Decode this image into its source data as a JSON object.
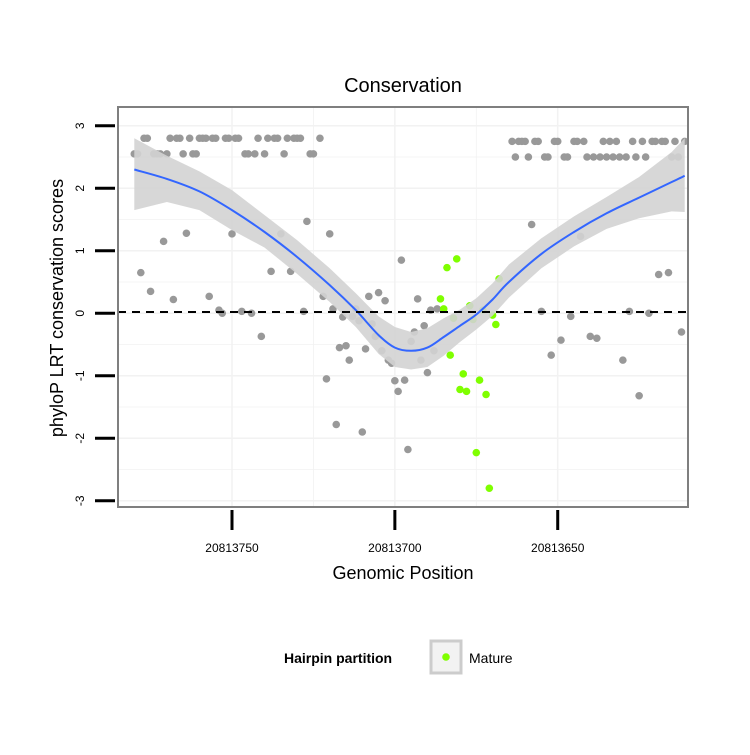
{
  "chart_data": {
    "type": "scatter",
    "title": "Conservation",
    "xlabel": "Genomic Position",
    "ylabel": "phyloP LRT conservation scores",
    "x_reversed": true,
    "xlim": [
      20813785,
      20813610
    ],
    "ylim": [
      -3.1,
      3.3
    ],
    "x_ticks": [
      20813750,
      20813700,
      20813650
    ],
    "y_ticks": [
      3,
      2,
      1,
      0,
      -1,
      -2,
      -3
    ],
    "grid": true,
    "reference_line": {
      "y": 0.02,
      "style": "dashed",
      "color": "#000000"
    },
    "colors": {
      "other": "#999999",
      "mature": "#7FFF00",
      "trend": "#3366FF",
      "confidence_band": "#D3D3D3",
      "panel_border": "#7F7F7F",
      "grid": "#F2F2F2"
    },
    "legend": {
      "title": "Hairpin partition",
      "position": "bottom",
      "entries": [
        {
          "label": "Mature",
          "color": "#7FFF00"
        }
      ]
    },
    "series": [
      {
        "name": "",
        "color": "#999999",
        "points": [
          [
            20813780,
            2.55
          ],
          [
            20813779,
            2.55
          ],
          [
            20813777,
            2.8
          ],
          [
            20813776,
            2.8
          ],
          [
            20813778,
            0.65
          ],
          [
            20813775,
            0.35
          ],
          [
            20813774,
            2.55
          ],
          [
            20813773,
            2.55
          ],
          [
            20813772,
            2.55
          ],
          [
            20813771,
            1.15
          ],
          [
            20813770,
            2.55
          ],
          [
            20813769,
            2.8
          ],
          [
            20813768,
            0.22
          ],
          [
            20813767,
            2.8
          ],
          [
            20813766,
            2.8
          ],
          [
            20813765,
            2.55
          ],
          [
            20813764,
            1.28
          ],
          [
            20813763,
            2.8
          ],
          [
            20813762,
            2.55
          ],
          [
            20813761,
            2.55
          ],
          [
            20813760,
            2.8
          ],
          [
            20813759,
            2.8
          ],
          [
            20813758,
            2.8
          ],
          [
            20813757,
            0.27
          ],
          [
            20813756,
            2.8
          ],
          [
            20813755,
            2.8
          ],
          [
            20813754,
            0.05
          ],
          [
            20813753,
            0.0
          ],
          [
            20813752,
            2.8
          ],
          [
            20813751,
            2.8
          ],
          [
            20813750,
            1.27
          ],
          [
            20813749,
            2.8
          ],
          [
            20813748,
            2.8
          ],
          [
            20813747,
            0.03
          ],
          [
            20813746,
            2.55
          ],
          [
            20813745,
            2.55
          ],
          [
            20813744,
            0.0
          ],
          [
            20813743,
            2.55
          ],
          [
            20813742,
            2.8
          ],
          [
            20813741,
            -0.37
          ],
          [
            20813740,
            2.55
          ],
          [
            20813739,
            2.8
          ],
          [
            20813738,
            0.67
          ],
          [
            20813737,
            2.8
          ],
          [
            20813736,
            2.8
          ],
          [
            20813735,
            1.27
          ],
          [
            20813734,
            2.55
          ],
          [
            20813733,
            2.8
          ],
          [
            20813732,
            0.67
          ],
          [
            20813731,
            2.8
          ],
          [
            20813730,
            2.8
          ],
          [
            20813729,
            2.8
          ],
          [
            20813728,
            0.03
          ],
          [
            20813727,
            1.47
          ],
          [
            20813726,
            2.55
          ],
          [
            20813725,
            2.55
          ],
          [
            20813723,
            2.8
          ],
          [
            20813722,
            0.27
          ],
          [
            20813721,
            -1.05
          ],
          [
            20813720,
            1.27
          ],
          [
            20813719,
            0.07
          ],
          [
            20813718,
            -1.78
          ],
          [
            20813717,
            -0.55
          ],
          [
            20813716,
            -0.06
          ],
          [
            20813715,
            -0.52
          ],
          [
            20813714,
            -0.75
          ],
          [
            20813713,
            -0.05
          ],
          [
            20813712,
            0.07
          ],
          [
            20813711,
            -0.12
          ],
          [
            20813710,
            -1.9
          ],
          [
            20813709,
            -0.57
          ],
          [
            20813708,
            0.27
          ],
          [
            20813707,
            -0.17
          ],
          [
            20813706,
            -0.37
          ],
          [
            20813705,
            0.33
          ],
          [
            20813704,
            -0.6
          ],
          [
            20813703,
            0.2
          ],
          [
            20813702,
            -0.75
          ],
          [
            20813701,
            -0.8
          ],
          [
            20813700,
            -1.08
          ],
          [
            20813699,
            -1.25
          ],
          [
            20813698,
            0.85
          ],
          [
            20813697,
            -1.07
          ],
          [
            20813696,
            -2.18
          ],
          [
            20813695,
            -0.45
          ],
          [
            20813694,
            -0.3
          ],
          [
            20813693,
            0.23
          ],
          [
            20813692,
            -0.75
          ],
          [
            20813691,
            -0.2
          ],
          [
            20813690,
            -0.95
          ],
          [
            20813689,
            0.05
          ],
          [
            20813688,
            -0.6
          ],
          [
            20813687,
            0.07
          ],
          [
            20813664,
            2.75
          ],
          [
            20813663,
            2.5
          ],
          [
            20813662,
            2.75
          ],
          [
            20813661,
            2.75
          ],
          [
            20813660,
            2.75
          ],
          [
            20813659,
            2.5
          ],
          [
            20813658,
            1.42
          ],
          [
            20813657,
            2.75
          ],
          [
            20813656,
            2.75
          ],
          [
            20813655,
            0.03
          ],
          [
            20813654,
            2.5
          ],
          [
            20813653,
            2.5
          ],
          [
            20813652,
            -0.67
          ],
          [
            20813651,
            2.75
          ],
          [
            20813650,
            2.75
          ],
          [
            20813649,
            -0.43
          ],
          [
            20813648,
            2.5
          ],
          [
            20813647,
            2.5
          ],
          [
            20813646,
            -0.05
          ],
          [
            20813645,
            2.75
          ],
          [
            20813644,
            2.75
          ],
          [
            20813643,
            1.23
          ],
          [
            20813642,
            2.75
          ],
          [
            20813641,
            2.5
          ],
          [
            20813640,
            -0.37
          ],
          [
            20813639,
            2.5
          ],
          [
            20813638,
            -0.4
          ],
          [
            20813637,
            2.5
          ],
          [
            20813636,
            2.75
          ],
          [
            20813635,
            2.5
          ],
          [
            20813634,
            2.75
          ],
          [
            20813633,
            2.5
          ],
          [
            20813632,
            2.75
          ],
          [
            20813631,
            2.5
          ],
          [
            20813630,
            -0.75
          ],
          [
            20813629,
            2.5
          ],
          [
            20813628,
            0.03
          ],
          [
            20813627,
            2.75
          ],
          [
            20813626,
            2.5
          ],
          [
            20813625,
            -1.32
          ],
          [
            20813624,
            2.75
          ],
          [
            20813623,
            2.5
          ],
          [
            20813622,
            -0.0
          ],
          [
            20813621,
            2.75
          ],
          [
            20813620,
            2.75
          ],
          [
            20813619,
            0.62
          ],
          [
            20813618,
            2.75
          ],
          [
            20813617,
            2.75
          ],
          [
            20813616,
            0.65
          ],
          [
            20813615,
            2.5
          ],
          [
            20813614,
            2.75
          ],
          [
            20813613,
            2.5
          ],
          [
            20813612,
            -0.3
          ],
          [
            20813611,
            2.75
          ]
        ]
      },
      {
        "name": "Mature",
        "color": "#7FFF00",
        "points": [
          [
            20813686,
            0.23
          ],
          [
            20813685,
            0.07
          ],
          [
            20813684,
            0.73
          ],
          [
            20813683,
            -0.67
          ],
          [
            20813682,
            -0.08
          ],
          [
            20813681,
            0.87
          ],
          [
            20813680,
            -1.22
          ],
          [
            20813679,
            -0.97
          ],
          [
            20813678,
            -1.25
          ],
          [
            20813677,
            0.12
          ],
          [
            20813676,
            -0.1
          ],
          [
            20813675,
            -2.23
          ],
          [
            20813674,
            -1.07
          ],
          [
            20813673,
            0.05
          ],
          [
            20813672,
            -1.3
          ],
          [
            20813671,
            -2.8
          ],
          [
            20813670,
            -0.03
          ],
          [
            20813669,
            -0.18
          ],
          [
            20813668,
            0.55
          ]
        ]
      }
    ],
    "trend": {
      "x": [
        20813780,
        20813770,
        20813760,
        20813750,
        20813740,
        20813730,
        20813720,
        20813712,
        20813705,
        20813700,
        20813695,
        20813690,
        20813685,
        20813680,
        20813675,
        20813670,
        20813665,
        20813655,
        20813645,
        20813635,
        20813625,
        20813615,
        20813611
      ],
      "y": [
        2.3,
        2.15,
        1.95,
        1.65,
        1.3,
        0.9,
        0.45,
        0.05,
        -0.35,
        -0.55,
        -0.6,
        -0.55,
        -0.38,
        -0.2,
        -0.02,
        0.22,
        0.5,
        0.95,
        1.3,
        1.6,
        1.85,
        2.1,
        2.2
      ],
      "lower": [
        1.65,
        1.78,
        1.65,
        1.33,
        1.05,
        0.63,
        0.18,
        -0.22,
        -0.65,
        -0.86,
        -0.9,
        -0.86,
        -0.68,
        -0.46,
        -0.26,
        -0.04,
        0.25,
        0.72,
        1.07,
        1.35,
        1.52,
        1.63,
        1.62
      ],
      "upper": [
        2.8,
        2.52,
        2.27,
        1.97,
        1.57,
        1.17,
        0.72,
        0.32,
        -0.05,
        -0.22,
        -0.3,
        -0.24,
        -0.08,
        0.06,
        0.24,
        0.48,
        0.78,
        1.2,
        1.55,
        1.86,
        2.18,
        2.58,
        2.8
      ]
    }
  }
}
